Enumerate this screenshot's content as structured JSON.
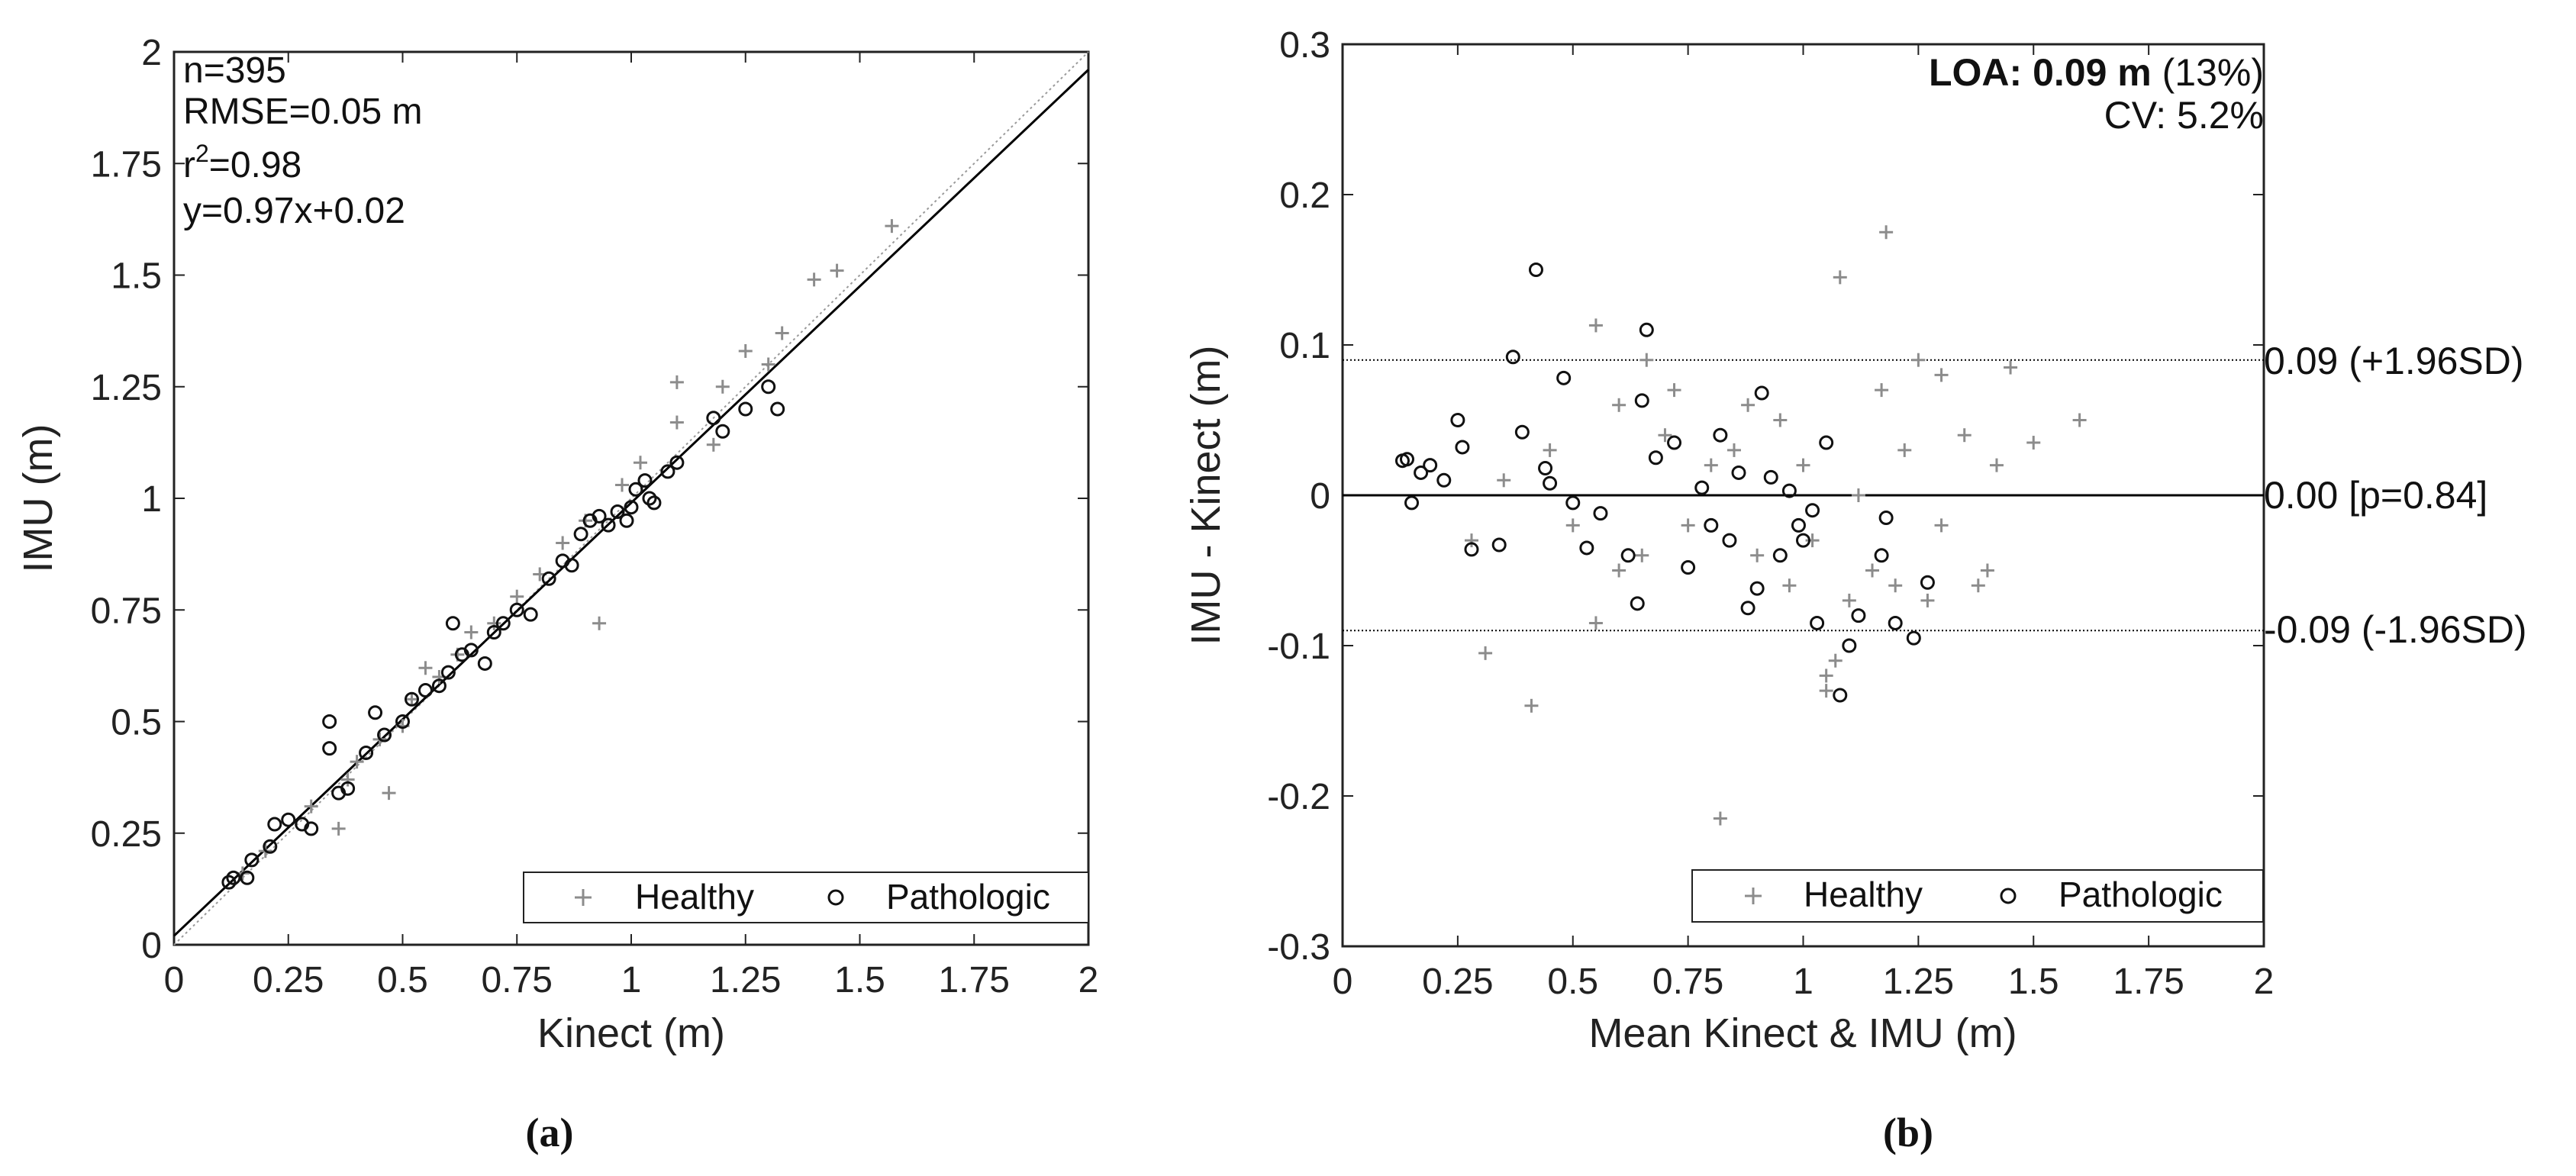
{
  "chart_data": [
    {
      "panel": "a",
      "caption": "(a)",
      "type": "scatter",
      "xlabel": "Kinect (m)",
      "ylabel": "IMU (m)",
      "xlim": [
        0,
        2
      ],
      "ylim": [
        0,
        2
      ],
      "xticks": [
        "0",
        "0.25",
        "0.5",
        "0.75",
        "1",
        "1.25",
        "1.5",
        "1.75",
        "2"
      ],
      "yticks": [
        "0",
        "0.25",
        "0.5",
        "0.75",
        "1",
        "1.25",
        "1.5",
        "1.75",
        "2"
      ],
      "stats": {
        "n": "n=395",
        "rmse": "RMSE=0.05 m",
        "r2_prefix": "r",
        "r2_sup": "2",
        "r2_suffix": "=0.98",
        "equation": "y=0.97x+0.02"
      },
      "fit_line": {
        "slope": 0.97,
        "intercept": 0.02
      },
      "identity_line": {
        "slope": 1,
        "intercept": 0
      },
      "legend": [
        "Healthy",
        "Pathologic"
      ],
      "colors": {
        "healthy": "#8c8c8c",
        "pathologic": "#111111",
        "fit": "#000000",
        "identity": "#9a9a9a"
      },
      "series": [
        {
          "name": "Healthy",
          "marker": "plus",
          "points": [
            [
              0.36,
              0.26
            ],
            [
              0.47,
              0.34
            ],
            [
              0.55,
              0.62
            ],
            [
              0.65,
              0.7
            ],
            [
              0.93,
              0.72
            ],
            [
              1.1,
              1.26
            ],
            [
              1.18,
              1.12
            ],
            [
              1.3,
              1.3
            ],
            [
              1.4,
              1.49
            ],
            [
              1.45,
              1.51
            ],
            [
              1.57,
              1.61
            ],
            [
              1.25,
              1.33
            ],
            [
              1.33,
              1.37
            ],
            [
              1.2,
              1.25
            ],
            [
              1.1,
              1.17
            ],
            [
              1.02,
              1.08
            ],
            [
              0.98,
              1.03
            ],
            [
              0.9,
              0.95
            ],
            [
              0.85,
              0.9
            ],
            [
              0.8,
              0.83
            ],
            [
              0.75,
              0.78
            ],
            [
              0.7,
              0.72
            ],
            [
              0.62,
              0.65
            ],
            [
              0.58,
              0.6
            ],
            [
              0.52,
              0.55
            ],
            [
              0.5,
              0.49
            ],
            [
              0.45,
              0.46
            ],
            [
              0.4,
              0.41
            ],
            [
              0.38,
              0.37
            ],
            [
              0.3,
              0.31
            ],
            [
              0.2,
              0.21
            ],
            [
              0.15,
              0.16
            ]
          ]
        },
        {
          "name": "Pathologic",
          "marker": "circle",
          "points": [
            [
              0.12,
              0.14
            ],
            [
              0.13,
              0.15
            ],
            [
              0.16,
              0.15
            ],
            [
              0.17,
              0.19
            ],
            [
              0.21,
              0.22
            ],
            [
              0.22,
              0.27
            ],
            [
              0.25,
              0.28
            ],
            [
              0.28,
              0.27
            ],
            [
              0.3,
              0.26
            ],
            [
              0.34,
              0.5
            ],
            [
              0.34,
              0.44
            ],
            [
              0.36,
              0.34
            ],
            [
              0.38,
              0.35
            ],
            [
              0.42,
              0.43
            ],
            [
              0.44,
              0.52
            ],
            [
              0.46,
              0.47
            ],
            [
              0.5,
              0.5
            ],
            [
              0.52,
              0.55
            ],
            [
              0.55,
              0.57
            ],
            [
              0.58,
              0.58
            ],
            [
              0.6,
              0.61
            ],
            [
              0.61,
              0.72
            ],
            [
              0.63,
              0.65
            ],
            [
              0.65,
              0.66
            ],
            [
              0.68,
              0.63
            ],
            [
              0.7,
              0.7
            ],
            [
              0.72,
              0.72
            ],
            [
              0.75,
              0.75
            ],
            [
              0.78,
              0.74
            ],
            [
              0.82,
              0.82
            ],
            [
              0.85,
              0.86
            ],
            [
              0.87,
              0.85
            ],
            [
              0.89,
              0.92
            ],
            [
              0.91,
              0.95
            ],
            [
              0.93,
              0.96
            ],
            [
              0.95,
              0.94
            ],
            [
              0.97,
              0.97
            ],
            [
              0.99,
              0.95
            ],
            [
              1.01,
              1.02
            ],
            [
              1.03,
              1.04
            ],
            [
              1.05,
              0.99
            ],
            [
              1.08,
              1.06
            ],
            [
              1.1,
              1.08
            ],
            [
              1.18,
              1.18
            ],
            [
              1.2,
              1.15
            ],
            [
              1.25,
              1.2
            ],
            [
              1.3,
              1.25
            ],
            [
              1.32,
              1.2
            ],
            [
              1.0,
              0.98
            ],
            [
              1.04,
              1.0
            ]
          ]
        }
      ]
    },
    {
      "panel": "b",
      "caption": "(b)",
      "type": "scatter",
      "xlabel": "Mean Kinect & IMU (m)",
      "ylabel": "IMU - Kinect (m)",
      "xlim": [
        0,
        2
      ],
      "ylim": [
        -0.3,
        0.3
      ],
      "xticks": [
        "0",
        "0.25",
        "0.5",
        "0.75",
        "1",
        "1.25",
        "1.5",
        "1.75",
        "2"
      ],
      "yticks": [
        "-0.3",
        "-0.2",
        "-0.1",
        "0",
        "0.1",
        "0.2",
        "0.3"
      ],
      "loa": {
        "bold": "LOA: 0.09 m",
        "rest": " (13%)",
        "cv": "CV: 5.2%"
      },
      "ref_lines": [
        {
          "y": 0.09,
          "style": "dotted",
          "label": "0.09 (+1.96SD)"
        },
        {
          "y": 0.0,
          "style": "solid",
          "label": "0.00 [p=0.84]"
        },
        {
          "y": -0.09,
          "style": "dotted",
          "label": "-0.09 (-1.96SD)"
        }
      ],
      "legend": [
        "Healthy",
        "Pathologic"
      ],
      "colors": {
        "healthy": "#8c8c8c",
        "pathologic": "#111111",
        "line": "#000000"
      },
      "series": [
        {
          "name": "Healthy",
          "marker": "plus",
          "points": [
            [
              0.31,
              -0.105
            ],
            [
              0.41,
              -0.14
            ],
            [
              0.55,
              0.113
            ],
            [
              0.66,
              0.09
            ],
            [
              0.82,
              -0.215
            ],
            [
              1.08,
              0.145
            ],
            [
              1.18,
              0.175
            ],
            [
              1.25,
              0.09
            ],
            [
              1.3,
              0.08
            ],
            [
              1.45,
              0.085
            ],
            [
              1.5,
              0.035
            ],
            [
              1.6,
              0.05
            ],
            [
              1.05,
              -0.13
            ],
            [
              1.05,
              -0.12
            ],
            [
              1.07,
              -0.11
            ],
            [
              1.1,
              -0.07
            ],
            [
              1.15,
              -0.05
            ],
            [
              1.2,
              -0.06
            ],
            [
              0.55,
              -0.085
            ],
            [
              0.6,
              0.06
            ],
            [
              0.7,
              0.04
            ],
            [
              0.75,
              -0.02
            ],
            [
              0.8,
              0.02
            ],
            [
              0.85,
              0.03
            ],
            [
              0.9,
              -0.04
            ],
            [
              0.95,
              0.05
            ],
            [
              1.0,
              0.02
            ],
            [
              1.02,
              -0.03
            ],
            [
              1.12,
              0.0
            ],
            [
              1.22,
              0.03
            ],
            [
              1.3,
              -0.02
            ],
            [
              1.35,
              0.04
            ],
            [
              1.4,
              -0.05
            ],
            [
              1.42,
              0.02
            ],
            [
              0.45,
              0.03
            ],
            [
              0.5,
              -0.02
            ],
            [
              0.35,
              0.01
            ],
            [
              0.28,
              -0.03
            ],
            [
              0.6,
              -0.05
            ],
            [
              0.65,
              -0.04
            ],
            [
              0.72,
              0.07
            ],
            [
              0.88,
              0.06
            ],
            [
              0.97,
              -0.06
            ],
            [
              1.17,
              0.07
            ],
            [
              1.27,
              -0.07
            ],
            [
              1.38,
              -0.06
            ]
          ]
        },
        {
          "name": "Pathologic",
          "marker": "circle",
          "points": [
            [
              0.13,
              0.023
            ],
            [
              0.14,
              0.024
            ],
            [
              0.15,
              -0.005
            ],
            [
              0.17,
              0.015
            ],
            [
              0.19,
              0.02
            ],
            [
              0.22,
              0.01
            ],
            [
              0.25,
              0.05
            ],
            [
              0.26,
              0.032
            ],
            [
              0.28,
              -0.036
            ],
            [
              0.34,
              -0.033
            ],
            [
              0.37,
              0.092
            ],
            [
              0.39,
              0.042
            ],
            [
              0.42,
              0.15
            ],
            [
              0.44,
              0.018
            ],
            [
              0.45,
              0.008
            ],
            [
              0.48,
              0.078
            ],
            [
              0.5,
              -0.005
            ],
            [
              0.53,
              -0.035
            ],
            [
              0.56,
              -0.012
            ],
            [
              0.62,
              -0.04
            ],
            [
              0.64,
              -0.072
            ],
            [
              0.65,
              0.063
            ],
            [
              0.66,
              0.11
            ],
            [
              0.68,
              0.025
            ],
            [
              0.72,
              0.035
            ],
            [
              0.75,
              -0.048
            ],
            [
              0.78,
              0.005
            ],
            [
              0.8,
              -0.02
            ],
            [
              0.82,
              0.04
            ],
            [
              0.84,
              -0.03
            ],
            [
              0.86,
              0.015
            ],
            [
              0.88,
              -0.075
            ],
            [
              0.9,
              -0.062
            ],
            [
              0.91,
              0.068
            ],
            [
              0.93,
              0.012
            ],
            [
              0.95,
              -0.04
            ],
            [
              0.97,
              0.003
            ],
            [
              0.99,
              -0.02
            ],
            [
              1.0,
              -0.03
            ],
            [
              1.02,
              -0.01
            ],
            [
              1.03,
              -0.085
            ],
            [
              1.05,
              0.035
            ],
            [
              1.08,
              -0.133
            ],
            [
              1.1,
              -0.1
            ],
            [
              1.12,
              -0.08
            ],
            [
              1.17,
              -0.04
            ],
            [
              1.2,
              -0.085
            ],
            [
              1.24,
              -0.095
            ],
            [
              1.27,
              -0.058
            ],
            [
              1.18,
              -0.015
            ]
          ]
        }
      ]
    }
  ]
}
